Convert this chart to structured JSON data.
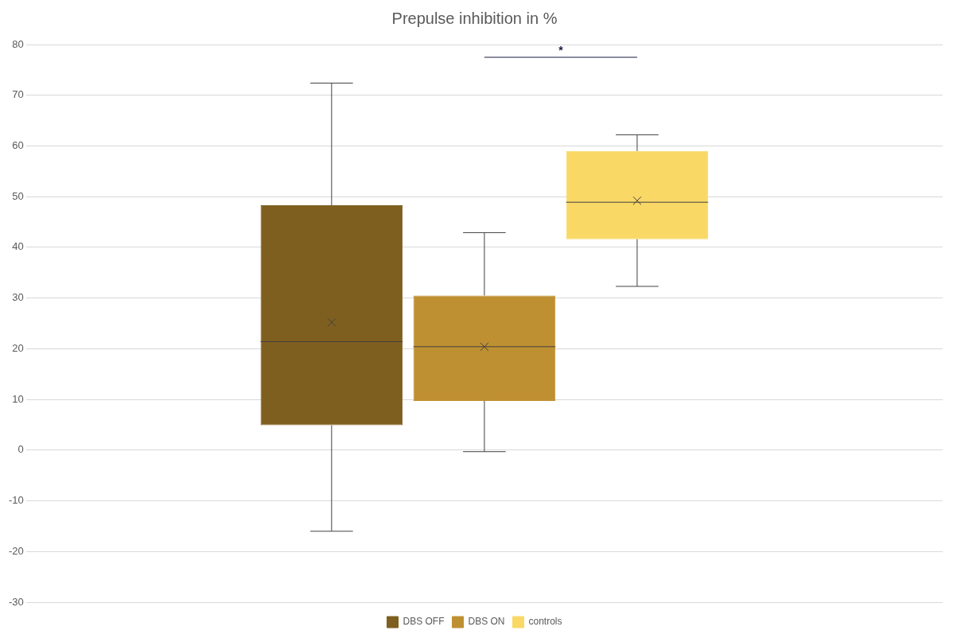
{
  "chart_data": {
    "type": "box",
    "title": "Prepulse inhibition in %",
    "categories": [
      null
    ],
    "series": [
      {
        "name": "DBS OFF",
        "color": "#7f5f1f",
        "boxes": [
          {
            "low": -16,
            "q1": 4.9,
            "median": 21.4,
            "q3": 48.3,
            "high": 72.4,
            "mean": 25.2
          }
        ]
      },
      {
        "name": "DBS ON",
        "color": "#bf9032",
        "boxes": [
          {
            "low": -0.3,
            "q1": 9.7,
            "median": 20.4,
            "q3": 30.5,
            "high": 42.9,
            "mean": 20.4
          }
        ]
      },
      {
        "name": "controls",
        "color": "#f9d866",
        "boxes": [
          {
            "low": 32.3,
            "q1": 41.6,
            "median": 48.9,
            "q3": 59,
            "high": 62.2,
            "mean": 49.2
          }
        ]
      }
    ],
    "ylim": [
      -30,
      80
    ],
    "yticks": [
      -30,
      -20,
      -10,
      0,
      10,
      20,
      30,
      40,
      50,
      60,
      70,
      80
    ],
    "annotations": [
      "*"
    ],
    "grid": "y",
    "legend": "bottom",
    "marker": "cross",
    "tick_labels": "y"
  }
}
